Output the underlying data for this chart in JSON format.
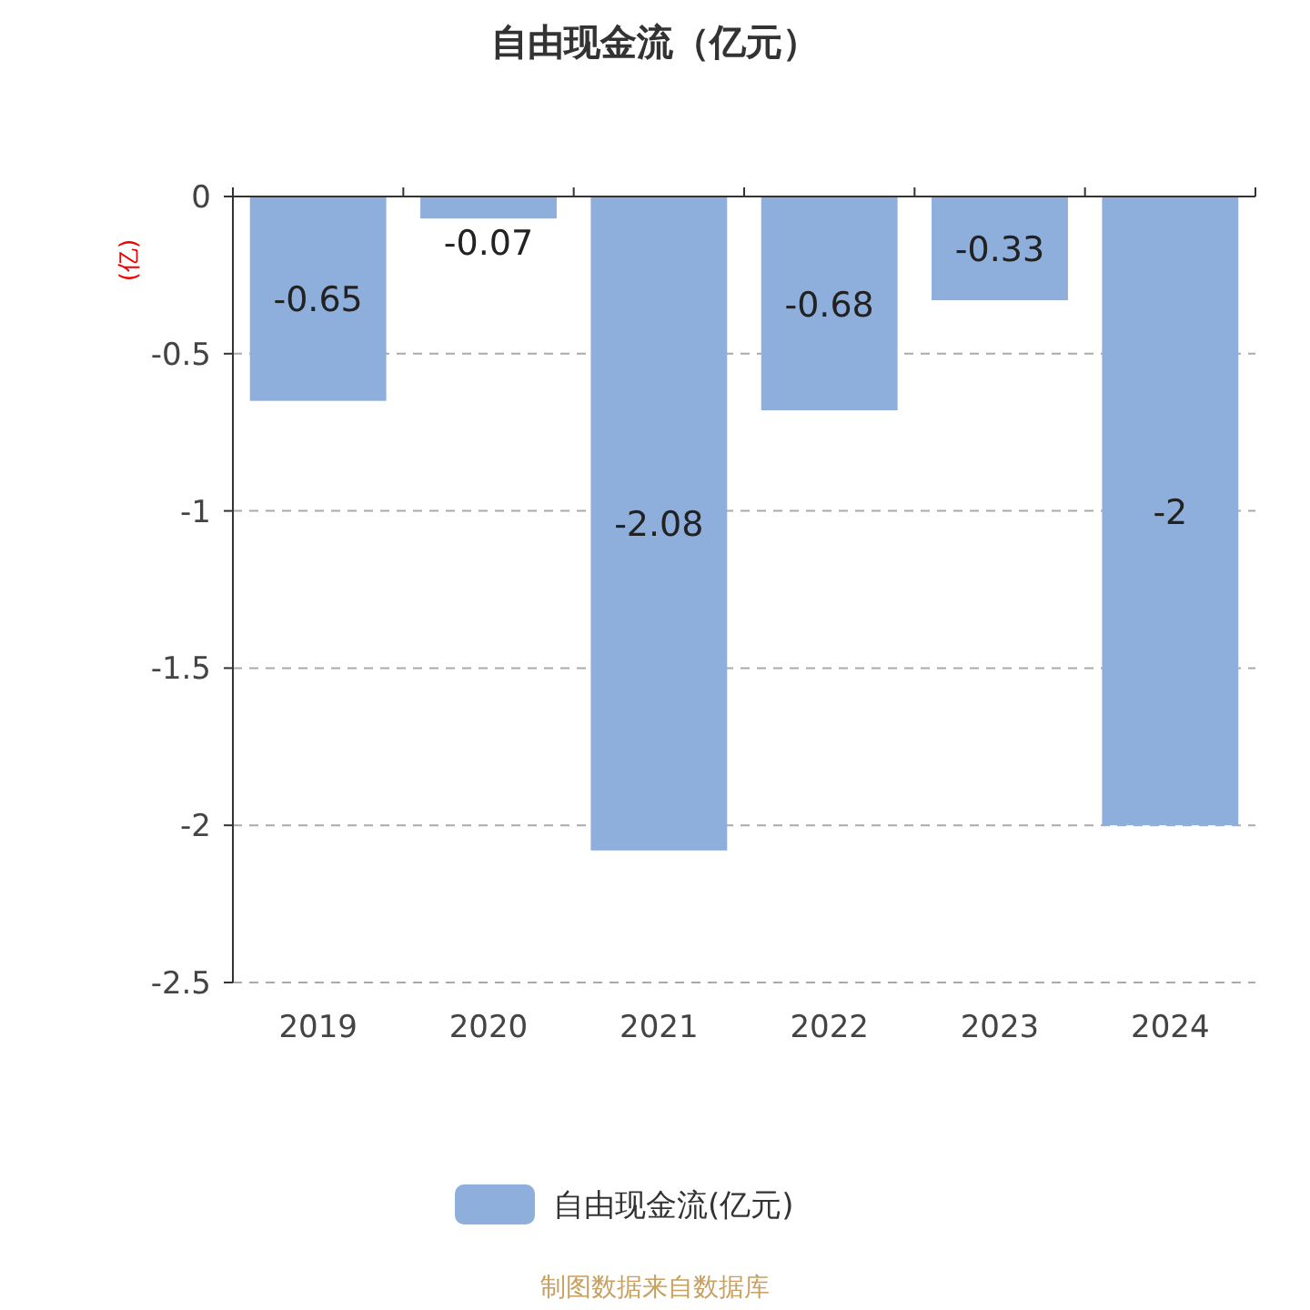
{
  "chart_data": {
    "type": "bar",
    "title": "自由现金流（亿元）",
    "ylabel": "(亿)",
    "categories": [
      "2019",
      "2020",
      "2021",
      "2022",
      "2023",
      "2024"
    ],
    "series": [
      {
        "name": "自由现金流(亿元)",
        "color": "#8eaedb",
        "values": [
          -0.65,
          -0.07,
          -2.08,
          -0.68,
          -0.33,
          -2
        ]
      }
    ],
    "ylim": [
      -2.5,
      0
    ],
    "yticks": [
      0,
      -0.5,
      -1,
      -1.5,
      -2,
      -2.5
    ],
    "grid": "y",
    "legend": "bottom",
    "data_labels": true,
    "annotations": [
      "制图数据来自数据库"
    ]
  }
}
